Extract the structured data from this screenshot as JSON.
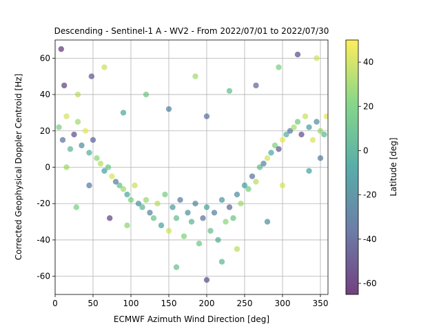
{
  "chart_data": {
    "type": "scatter",
    "title": "Descending - Sentinel-1 A - WV2 - From 2022/07/01 to 2022/07/30",
    "xlabel": "ECMWF Azimuth Wind Direction [deg]",
    "ylabel": "Corrected Geophysical Doppler Centroid [Hz]",
    "xlim": [
      0,
      360
    ],
    "ylim": [
      -70,
      70
    ],
    "xticks": [
      0,
      50,
      100,
      150,
      200,
      250,
      300,
      350
    ],
    "yticks": [
      -60,
      -40,
      -20,
      0,
      20,
      40,
      60
    ],
    "grid": true,
    "marker_alpha": 0.6,
    "colormap": "viridis",
    "colorbar": {
      "label": "Latitude [deg]",
      "range": [
        -65,
        50
      ],
      "ticks": [
        -60,
        -40,
        -20,
        0,
        20,
        40
      ]
    },
    "series": [
      {
        "description": "Doppler centroid follows an approximate negative cosine of wind direction: near -20 Hz around 200 deg, near +20 Hz at 0 and 360 deg.",
        "points": [
          {
            "x": 5,
            "y": 22,
            "lat": 20
          },
          {
            "x": 10,
            "y": 15,
            "lat": -35
          },
          {
            "x": 15,
            "y": 28,
            "lat": 40
          },
          {
            "x": 20,
            "y": 10,
            "lat": 5
          },
          {
            "x": 25,
            "y": 18,
            "lat": -50
          },
          {
            "x": 30,
            "y": 25,
            "lat": 30
          },
          {
            "x": 35,
            "y": 12,
            "lat": -20
          },
          {
            "x": 40,
            "y": 20,
            "lat": 45
          },
          {
            "x": 45,
            "y": 8,
            "lat": 0
          },
          {
            "x": 50,
            "y": 15,
            "lat": -40
          },
          {
            "x": 55,
            "y": 5,
            "lat": 25
          },
          {
            "x": 60,
            "y": 2,
            "lat": 35
          },
          {
            "x": 65,
            "y": -2,
            "lat": -10
          },
          {
            "x": 70,
            "y": 0,
            "lat": 15
          },
          {
            "x": 75,
            "y": -5,
            "lat": 42
          },
          {
            "x": 80,
            "y": -8,
            "lat": -30
          },
          {
            "x": 85,
            "y": -10,
            "lat": 10
          },
          {
            "x": 90,
            "y": -12,
            "lat": 30
          },
          {
            "x": 95,
            "y": -15,
            "lat": -5
          },
          {
            "x": 100,
            "y": -18,
            "lat": 20
          },
          {
            "x": 105,
            "y": -10,
            "lat": 38
          },
          {
            "x": 110,
            "y": -20,
            "lat": -15
          },
          {
            "x": 115,
            "y": -22,
            "lat": 5
          },
          {
            "x": 120,
            "y": -18,
            "lat": 28
          },
          {
            "x": 125,
            "y": -25,
            "lat": -25
          },
          {
            "x": 130,
            "y": -28,
            "lat": 12
          },
          {
            "x": 135,
            "y": -20,
            "lat": 35
          },
          {
            "x": 140,
            "y": -32,
            "lat": -8
          },
          {
            "x": 145,
            "y": -15,
            "lat": 18
          },
          {
            "x": 150,
            "y": -35,
            "lat": 40
          },
          {
            "x": 155,
            "y": -22,
            "lat": -12
          },
          {
            "x": 160,
            "y": -28,
            "lat": 8
          },
          {
            "x": 165,
            "y": -18,
            "lat": -30
          },
          {
            "x": 170,
            "y": -38,
            "lat": 22
          },
          {
            "x": 175,
            "y": -25,
            "lat": -18
          },
          {
            "x": 180,
            "y": -30,
            "lat": 3
          },
          {
            "x": 185,
            "y": -20,
            "lat": -22
          },
          {
            "x": 190,
            "y": -42,
            "lat": 15
          },
          {
            "x": 195,
            "y": -28,
            "lat": -35
          },
          {
            "x": 200,
            "y": -22,
            "lat": -5
          },
          {
            "x": 205,
            "y": -35,
            "lat": 10
          },
          {
            "x": 210,
            "y": -25,
            "lat": -28
          },
          {
            "x": 215,
            "y": -40,
            "lat": 0
          },
          {
            "x": 220,
            "y": -18,
            "lat": -15
          },
          {
            "x": 225,
            "y": -30,
            "lat": 25
          },
          {
            "x": 230,
            "y": -22,
            "lat": -40
          },
          {
            "x": 235,
            "y": -28,
            "lat": 12
          },
          {
            "x": 240,
            "y": -15,
            "lat": -20
          },
          {
            "x": 245,
            "y": -20,
            "lat": 30
          },
          {
            "x": 250,
            "y": -10,
            "lat": -10
          },
          {
            "x": 255,
            "y": -12,
            "lat": 18
          },
          {
            "x": 260,
            "y": -5,
            "lat": -35
          },
          {
            "x": 265,
            "y": -8,
            "lat": 35
          },
          {
            "x": 270,
            "y": 0,
            "lat": 8
          },
          {
            "x": 275,
            "y": 2,
            "lat": -25
          },
          {
            "x": 280,
            "y": 5,
            "lat": 40
          },
          {
            "x": 285,
            "y": 8,
            "lat": -5
          },
          {
            "x": 290,
            "y": 12,
            "lat": 22
          },
          {
            "x": 295,
            "y": 10,
            "lat": -45
          },
          {
            "x": 300,
            "y": 15,
            "lat": 45
          },
          {
            "x": 305,
            "y": 18,
            "lat": 0
          },
          {
            "x": 310,
            "y": 20,
            "lat": -30
          },
          {
            "x": 315,
            "y": 22,
            "lat": 32
          },
          {
            "x": 320,
            "y": 25,
            "lat": 15
          },
          {
            "x": 325,
            "y": 18,
            "lat": -50
          },
          {
            "x": 330,
            "y": 28,
            "lat": 38
          },
          {
            "x": 335,
            "y": 22,
            "lat": -10
          },
          {
            "x": 340,
            "y": 15,
            "lat": 42
          },
          {
            "x": 345,
            "y": 25,
            "lat": -20
          },
          {
            "x": 350,
            "y": 20,
            "lat": 28
          },
          {
            "x": 355,
            "y": 18,
            "lat": 5
          },
          {
            "x": 358,
            "y": 28,
            "lat": 45
          },
          {
            "x": 12,
            "y": 45,
            "lat": -55
          },
          {
            "x": 30,
            "y": 40,
            "lat": 35
          },
          {
            "x": 48,
            "y": 50,
            "lat": -45
          },
          {
            "x": 65,
            "y": 55,
            "lat": 38
          },
          {
            "x": 90,
            "y": 30,
            "lat": -5
          },
          {
            "x": 120,
            "y": 40,
            "lat": 15
          },
          {
            "x": 150,
            "y": 32,
            "lat": -25
          },
          {
            "x": 185,
            "y": 50,
            "lat": 30
          },
          {
            "x": 200,
            "y": 28,
            "lat": -35
          },
          {
            "x": 230,
            "y": 42,
            "lat": 8
          },
          {
            "x": 265,
            "y": 45,
            "lat": -40
          },
          {
            "x": 295,
            "y": 55,
            "lat": 20
          },
          {
            "x": 320,
            "y": 62,
            "lat": -50
          },
          {
            "x": 345,
            "y": 60,
            "lat": 40
          },
          {
            "x": 8,
            "y": 65,
            "lat": -60
          },
          {
            "x": 28,
            "y": -22,
            "lat": 20
          },
          {
            "x": 45,
            "y": -10,
            "lat": -30
          },
          {
            "x": 72,
            "y": -28,
            "lat": -55
          },
          {
            "x": 95,
            "y": -32,
            "lat": 25
          },
          {
            "x": 160,
            "y": -55,
            "lat": 10
          },
          {
            "x": 200,
            "y": -62,
            "lat": -50
          },
          {
            "x": 220,
            "y": -52,
            "lat": 5
          },
          {
            "x": 240,
            "y": -45,
            "lat": 35
          },
          {
            "x": 280,
            "y": -30,
            "lat": -20
          },
          {
            "x": 300,
            "y": -10,
            "lat": 42
          },
          {
            "x": 335,
            "y": -2,
            "lat": -8
          },
          {
            "x": 15,
            "y": 0,
            "lat": 30
          },
          {
            "x": 350,
            "y": 5,
            "lat": -30
          }
        ]
      }
    ]
  }
}
